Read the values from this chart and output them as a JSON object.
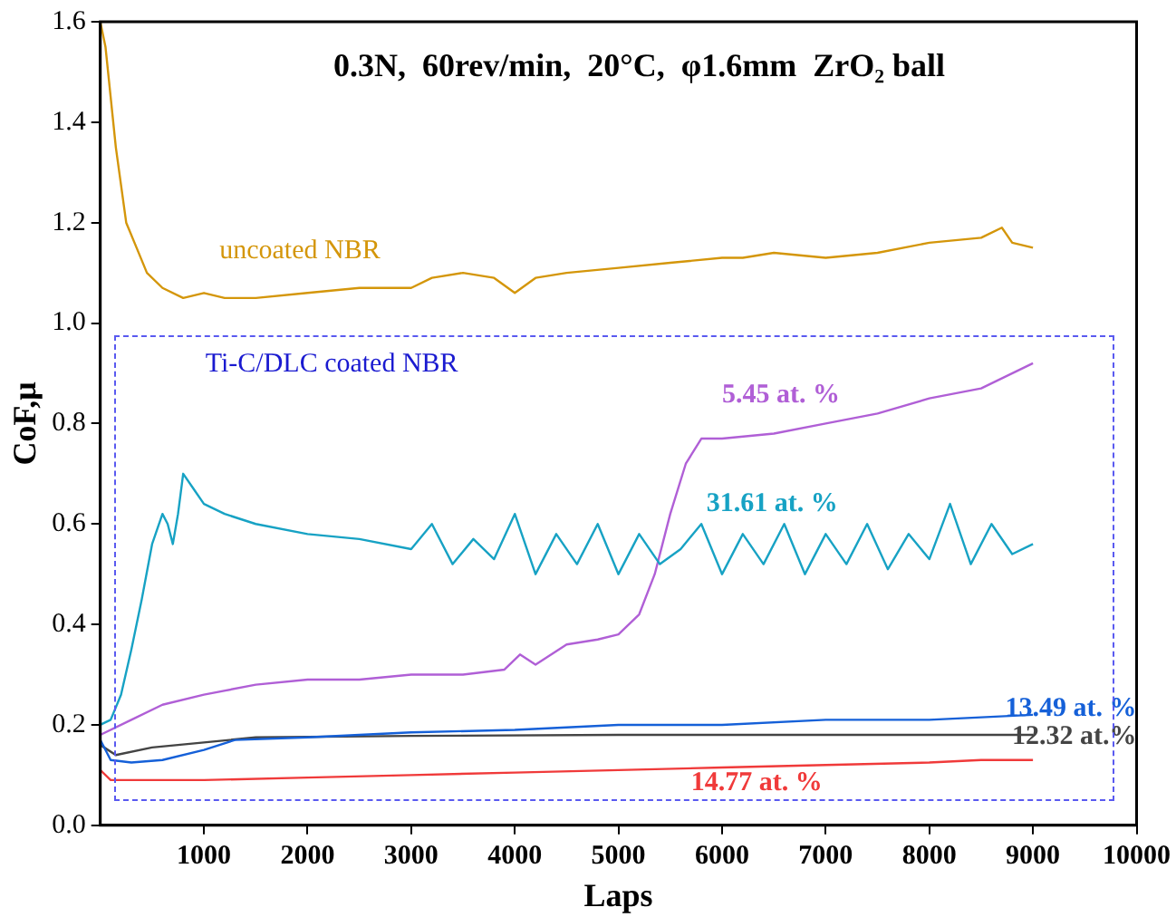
{
  "chart_data": {
    "type": "line",
    "title": "0.3N,  60rev/min,  20°C,  φ1.6mm  ZrO₂ ball",
    "xlabel": "Laps",
    "ylabel": "CoF,μ",
    "annotations": [
      "Ti-C/DLC coated NBR"
    ],
    "xlim": [
      0,
      10000
    ],
    "xticks": [
      1000,
      2000,
      3000,
      4000,
      5000,
      6000,
      7000,
      8000,
      9000,
      10000
    ],
    "ylim": [
      0,
      1.6
    ],
    "yticks": [
      {
        "value": 0,
        "label": "0.0"
      },
      0.2,
      0.4,
      0.6,
      0.8,
      {
        "value": 1,
        "label": "1.0"
      },
      1.2,
      1.4,
      1.6
    ],
    "grid": false,
    "legend": false,
    "marker": "none",
    "line_style": "solid",
    "series": [
      {
        "name": "uncoated NBR",
        "color": "#d4960a",
        "x": [
          0,
          50,
          150,
          250,
          350,
          450,
          600,
          800,
          1000,
          1200,
          1500,
          2000,
          2500,
          3000,
          3200,
          3500,
          3800,
          4000,
          4200,
          4500,
          5000,
          5500,
          6000,
          6200,
          6500,
          7000,
          7500,
          8000,
          8500,
          8700,
          8800,
          9000
        ],
        "values": [
          1.6,
          1.55,
          1.35,
          1.2,
          1.15,
          1.1,
          1.07,
          1.05,
          1.06,
          1.05,
          1.05,
          1.06,
          1.07,
          1.07,
          1.09,
          1.1,
          1.09,
          1.06,
          1.09,
          1.1,
          1.11,
          1.12,
          1.13,
          1.13,
          1.14,
          1.13,
          1.14,
          1.16,
          1.17,
          1.19,
          1.16,
          1.15
        ]
      },
      {
        "name": "31.61 at. %",
        "color": "#17a2c4",
        "x": [
          0,
          100,
          200,
          300,
          400,
          500,
          600,
          650,
          700,
          750,
          800,
          900,
          1000,
          1200,
          1500,
          2000,
          2500,
          3000,
          3200,
          3400,
          3600,
          3800,
          4000,
          4200,
          4400,
          4600,
          4800,
          5000,
          5200,
          5400,
          5600,
          5800,
          6000,
          6200,
          6400,
          6600,
          6800,
          7000,
          7200,
          7400,
          7600,
          7800,
          8000,
          8200,
          8400,
          8600,
          8800,
          9000
        ],
        "values": [
          0.2,
          0.21,
          0.26,
          0.35,
          0.45,
          0.56,
          0.62,
          0.6,
          0.56,
          0.62,
          0.7,
          0.67,
          0.64,
          0.62,
          0.6,
          0.58,
          0.57,
          0.55,
          0.6,
          0.52,
          0.57,
          0.53,
          0.62,
          0.5,
          0.58,
          0.52,
          0.6,
          0.5,
          0.58,
          0.52,
          0.55,
          0.6,
          0.5,
          0.58,
          0.52,
          0.6,
          0.5,
          0.58,
          0.52,
          0.6,
          0.51,
          0.58,
          0.53,
          0.64,
          0.52,
          0.6,
          0.54,
          0.56
        ]
      },
      {
        "name": "5.45 at. %",
        "color": "#b05fd6",
        "x": [
          0,
          300,
          600,
          1000,
          1500,
          2000,
          2500,
          3000,
          3500,
          3900,
          4050,
          4200,
          4500,
          4800,
          5000,
          5200,
          5350,
          5500,
          5650,
          5800,
          6000,
          6500,
          7000,
          7500,
          8000,
          8500,
          9000
        ],
        "values": [
          0.18,
          0.21,
          0.24,
          0.26,
          0.28,
          0.29,
          0.29,
          0.3,
          0.3,
          0.31,
          0.34,
          0.32,
          0.36,
          0.37,
          0.38,
          0.42,
          0.5,
          0.62,
          0.72,
          0.77,
          0.77,
          0.78,
          0.8,
          0.82,
          0.85,
          0.87,
          0.92
        ]
      },
      {
        "name": "13.49 at. %",
        "color": "#1560d8",
        "x": [
          0,
          100,
          300,
          600,
          1000,
          1300,
          2000,
          3000,
          4000,
          5000,
          6000,
          7000,
          8000,
          9000
        ],
        "values": [
          0.17,
          0.13,
          0.125,
          0.13,
          0.15,
          0.17,
          0.175,
          0.185,
          0.19,
          0.2,
          0.2,
          0.21,
          0.21,
          0.22
        ]
      },
      {
        "name": "12.32 at.%",
        "color": "#444444",
        "x": [
          0,
          150,
          500,
          1000,
          1500,
          3000,
          5000,
          7000,
          9000
        ],
        "values": [
          0.16,
          0.14,
          0.155,
          0.165,
          0.175,
          0.178,
          0.18,
          0.18,
          0.18
        ]
      },
      {
        "name": "14.77 at. %",
        "color": "#f03a3a",
        "x": [
          0,
          100,
          1000,
          2000,
          3000,
          4000,
          5000,
          6000,
          7000,
          8000,
          8500,
          9000
        ],
        "values": [
          0.11,
          0.09,
          0.09,
          0.095,
          0.1,
          0.105,
          0.11,
          0.115,
          0.12,
          0.125,
          0.13,
          0.13
        ]
      }
    ]
  }
}
